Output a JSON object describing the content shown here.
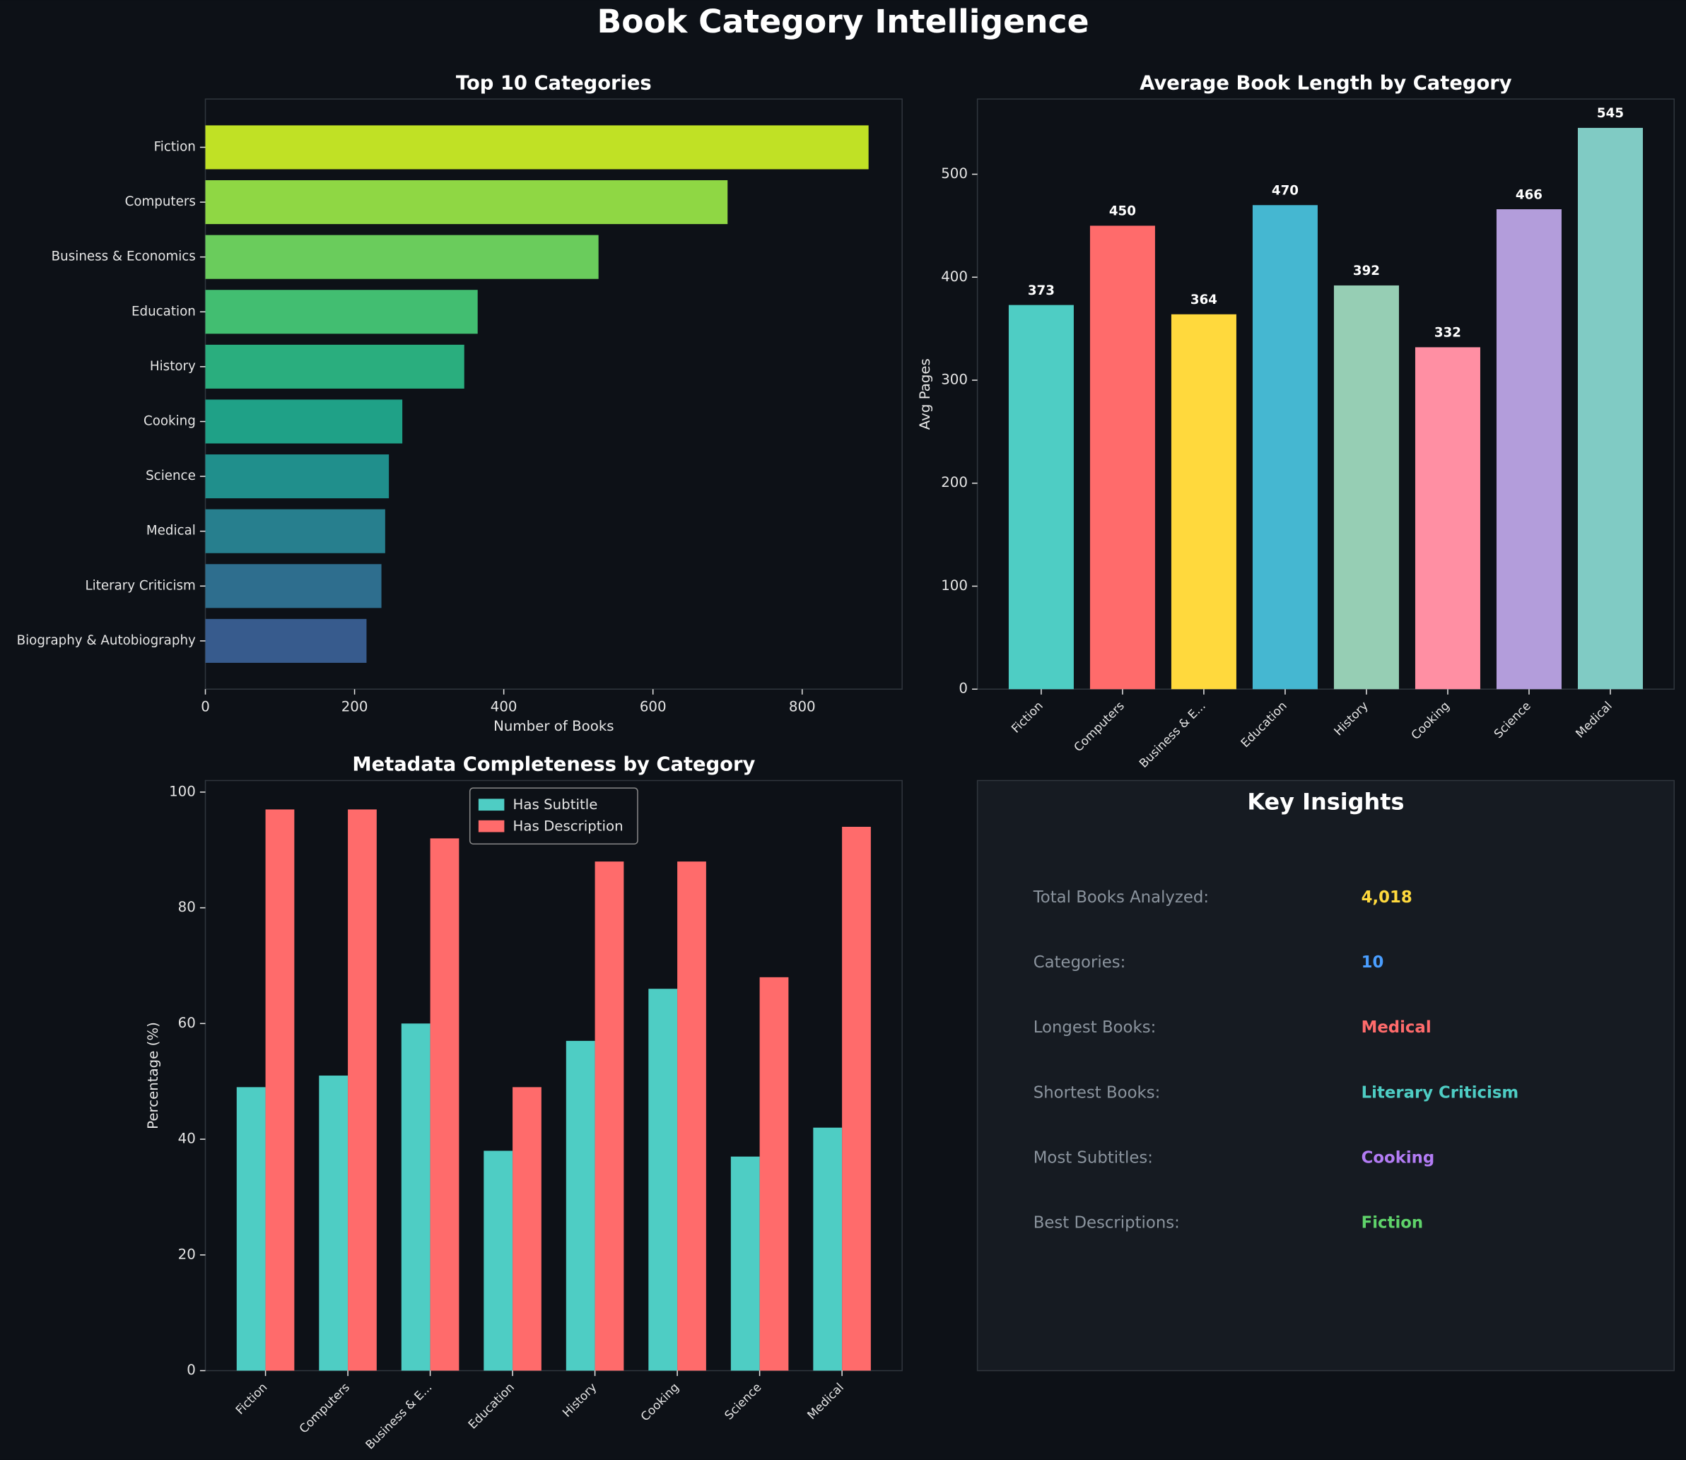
{
  "title": "Book Category Intelligence",
  "chart_data": [
    {
      "type": "barh",
      "title": "Top 10 Categories",
      "xlabel": "Number of Books",
      "categories": [
        "Fiction",
        "Computers",
        "Business & Economics",
        "Education",
        "History",
        "Cooking",
        "Science",
        "Medical",
        "Literary Criticism",
        "Biography & Autobiography"
      ],
      "values": [
        889,
        700,
        527,
        365,
        347,
        264,
        246,
        241,
        236,
        216
      ],
      "colors": [
        "#c0e125",
        "#8fd744",
        "#6acc5c",
        "#42be71",
        "#2aae7e",
        "#1fa187",
        "#208f8c",
        "#277f8e",
        "#2e6e8e",
        "#375b8d"
      ],
      "xlim": [
        0,
        934
      ],
      "xticks": [
        0,
        200,
        400,
        600,
        800
      ]
    },
    {
      "type": "bar",
      "title": "Average Book Length by Category",
      "ylabel": "Avg Pages",
      "categories": [
        "Fiction",
        "Computers",
        "Business & E...",
        "Education",
        "History",
        "Cooking",
        "Science",
        "Medical"
      ],
      "values": [
        373,
        450,
        364,
        470,
        392,
        332,
        466,
        545
      ],
      "colors": [
        "#4ecdc4",
        "#ff6b6b",
        "#ffd93d",
        "#45b7d1",
        "#96ceb4",
        "#ff8fa3",
        "#b39ddb",
        "#80cbc4"
      ],
      "ylim": [
        0,
        573
      ],
      "yticks": [
        0,
        100,
        200,
        300,
        400,
        500
      ]
    },
    {
      "type": "grouped_bar",
      "title": "Metadata Completeness by Category",
      "ylabel": "Percentage (%)",
      "categories": [
        "Fiction",
        "Computers",
        "Business & E...",
        "Education",
        "History",
        "Cooking",
        "Science",
        "Medical"
      ],
      "series": [
        {
          "name": "Has Subtitle",
          "color": "#4ecdc4",
          "values": [
            49,
            51,
            60,
            38,
            57,
            66,
            37,
            42
          ]
        },
        {
          "name": "Has Description",
          "color": "#ff6b6b",
          "values": [
            97,
            97,
            92,
            49,
            88,
            88,
            68,
            94
          ]
        }
      ],
      "ylim": [
        0,
        102
      ],
      "yticks": [
        0,
        20,
        40,
        60,
        80,
        100
      ],
      "legend": "upper center"
    }
  ],
  "insights": {
    "title": "Key Insights",
    "items": [
      {
        "label": "Total Books Analyzed:",
        "value": "4,018",
        "color": "#ffd93d"
      },
      {
        "label": "Categories:",
        "value": "10",
        "color": "#4a9eff"
      },
      {
        "label": "Longest Books:",
        "value": "Medical",
        "color": "#ff6b6b"
      },
      {
        "label": "Shortest Books:",
        "value": "Literary Criticism",
        "color": "#4ecdc4"
      },
      {
        "label": "Most Subtitles:",
        "value": "Cooking",
        "color": "#b37cf5"
      },
      {
        "label": "Best Descriptions:",
        "value": "Fiction",
        "color": "#5fd36a"
      }
    ]
  }
}
